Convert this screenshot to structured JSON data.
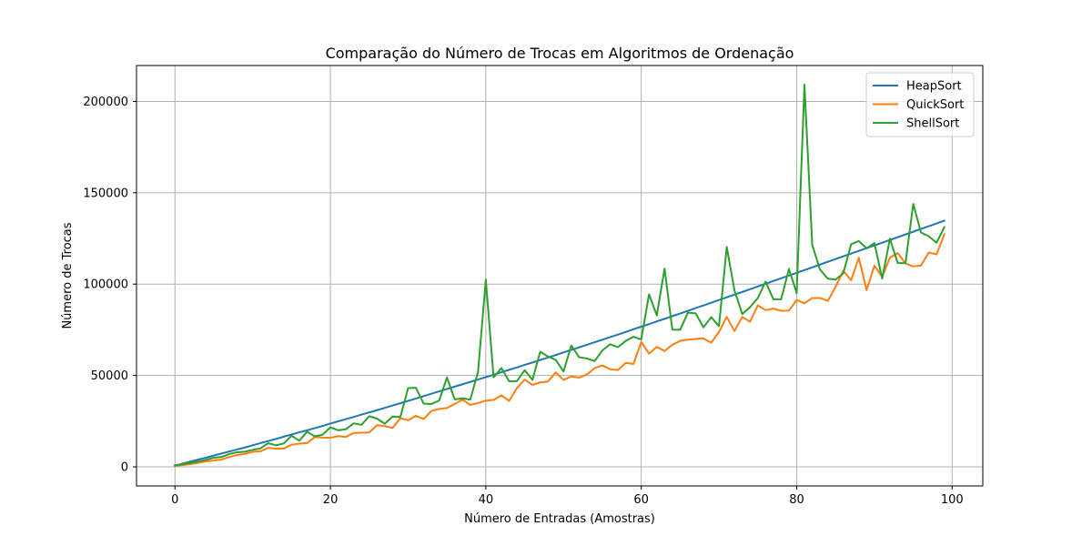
{
  "chart_data": {
    "type": "line",
    "title": "Comparação do Número de Trocas em Algoritmos de Ordenação",
    "xlabel": "Número de Entradas (Amostras)",
    "ylabel": "Número de Trocas",
    "xlim": [
      -4.95,
      103.95
    ],
    "ylim": [
      -10460,
      219660
    ],
    "xticks": [
      0,
      20,
      40,
      60,
      80,
      100
    ],
    "yticks": [
      0,
      50000,
      100000,
      150000,
      200000
    ],
    "grid": true,
    "legend_position": "top-right",
    "x": [
      0,
      1,
      2,
      3,
      4,
      5,
      6,
      7,
      8,
      9,
      10,
      11,
      12,
      13,
      14,
      15,
      16,
      17,
      18,
      19,
      20,
      21,
      22,
      23,
      24,
      25,
      26,
      27,
      28,
      29,
      30,
      31,
      32,
      33,
      34,
      35,
      36,
      37,
      38,
      39,
      40,
      41,
      42,
      43,
      44,
      45,
      46,
      47,
      48,
      49,
      50,
      51,
      52,
      53,
      54,
      55,
      56,
      57,
      58,
      59,
      60,
      61,
      62,
      63,
      64,
      65,
      66,
      67,
      68,
      69,
      70,
      71,
      72,
      73,
      74,
      75,
      76,
      77,
      78,
      79,
      80,
      81,
      82,
      83,
      84,
      85,
      86,
      87,
      88,
      89,
      90,
      91,
      92,
      93,
      94,
      95,
      96,
      97,
      98,
      99
    ],
    "series": [
      {
        "name": "HeapSort",
        "color": "#1f77b4",
        "values": [
          600,
          1800,
          2900,
          4000,
          5000,
          6200,
          7300,
          8400,
          9500,
          10600,
          11800,
          13000,
          14100,
          15300,
          16500,
          17700,
          18900,
          20000,
          21200,
          22400,
          23700,
          24900,
          26100,
          27300,
          28600,
          29800,
          31000,
          32300,
          33600,
          34800,
          36100,
          37400,
          38700,
          40000,
          41300,
          42600,
          43900,
          45200,
          46500,
          47800,
          49100,
          50400,
          51800,
          53100,
          54400,
          55800,
          57100,
          58500,
          59800,
          61200,
          62600,
          64000,
          65400,
          66800,
          68200,
          69600,
          71000,
          72400,
          73800,
          75300,
          76700,
          78100,
          79600,
          81000,
          82500,
          83900,
          85400,
          86900,
          88300,
          89800,
          91300,
          92800,
          94300,
          95700,
          97200,
          98700,
          100200,
          101700,
          103200,
          104700,
          106200,
          107700,
          109200,
          110700,
          112200,
          113700,
          115200,
          116700,
          118200,
          119700,
          121200,
          122700,
          124200,
          125700,
          127200,
          128700,
          130200,
          131700,
          133200,
          134700
        ]
      },
      {
        "name": "QuickSort",
        "color": "#ff7f0e",
        "values": [
          600,
          900,
          1500,
          2200,
          3000,
          3500,
          4000,
          5400,
          6500,
          7100,
          8200,
          8500,
          10400,
          9900,
          10000,
          12100,
          12700,
          13000,
          16300,
          16000,
          15900,
          16800,
          16400,
          18500,
          18700,
          18800,
          22800,
          22300,
          21300,
          26600,
          25500,
          27900,
          26200,
          30600,
          31700,
          32200,
          34400,
          36800,
          33900,
          34900,
          36200,
          36600,
          39100,
          36100,
          43100,
          47700,
          44900,
          46200,
          46700,
          51700,
          47600,
          49500,
          48800,
          50500,
          54000,
          55500,
          53400,
          53000,
          56900,
          56300,
          68400,
          61900,
          65700,
          63400,
          66800,
          68900,
          69600,
          70000,
          70300,
          68000,
          73800,
          82100,
          74300,
          82100,
          79400,
          88400,
          85700,
          86600,
          85400,
          85500,
          91300,
          89500,
          92400,
          92400,
          90800,
          98400,
          107300,
          102100,
          114400,
          96700,
          110100,
          104000,
          114500,
          117000,
          111300,
          109700,
          110200,
          117300,
          116300,
          127300
        ]
      },
      {
        "name": "ShellSort",
        "color": "#2ca02c",
        "values": [
          800,
          1500,
          2100,
          2900,
          3800,
          5000,
          5400,
          7000,
          8000,
          8300,
          9300,
          10100,
          12900,
          11800,
          12800,
          17000,
          14300,
          19200,
          16700,
          17600,
          21600,
          20000,
          20600,
          23800,
          23000,
          27700,
          26400,
          23600,
          27600,
          27200,
          43100,
          43300,
          34600,
          34400,
          36300,
          48900,
          36900,
          37500,
          36800,
          52000,
          102400,
          49000,
          54100,
          46800,
          46900,
          52900,
          47600,
          63000,
          60400,
          58500,
          52200,
          66400,
          60000,
          59300,
          57900,
          63700,
          67100,
          65500,
          68900,
          71200,
          69700,
          94400,
          82900,
          108500,
          75100,
          75000,
          84400,
          84000,
          76300,
          81900,
          77000,
          120300,
          96500,
          83600,
          87400,
          92400,
          101400,
          91700,
          91700,
          108300,
          95100,
          209200,
          121500,
          108000,
          103000,
          102500,
          105900,
          121800,
          123600,
          119600,
          122500,
          103000,
          124900,
          111500,
          111500,
          143900,
          128200,
          126200,
          122600,
          131200
        ]
      }
    ]
  }
}
